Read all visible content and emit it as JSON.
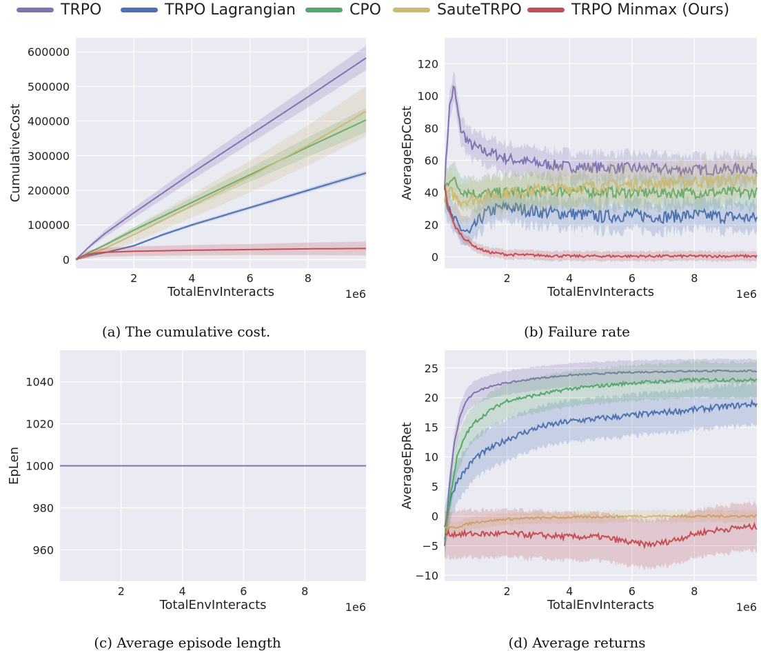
{
  "legend": [
    {
      "name": "TRPO",
      "color": "#8172b2"
    },
    {
      "name": "TRPO Lagrangian",
      "color": "#4c72b0"
    },
    {
      "name": "CPO",
      "color": "#55a868"
    },
    {
      "name": "SauteTRPO",
      "color": "#ccb974"
    },
    {
      "name": "TRPO Minmax (Ours)",
      "color": "#c44e52"
    }
  ],
  "captions": {
    "a": "(a) The cumulative cost.",
    "b": "(b) Failure rate",
    "c": "(c) Average episode length",
    "d": "(d) Average returns"
  },
  "chart_data": [
    {
      "id": "a",
      "type": "line",
      "xlabel": "TotalEnvInteracts",
      "ylabel": "CumulativeCost",
      "x_scale_label": "1e6",
      "xlim": [
        0,
        10
      ],
      "ylim": [
        -25000,
        640000
      ],
      "xticks": [
        2,
        4,
        6,
        8
      ],
      "yticks": [
        0,
        100000,
        200000,
        300000,
        400000,
        500000,
        600000
      ],
      "grid": true,
      "series": [
        {
          "name": "TRPO",
          "color": "#8172b2",
          "x": [
            0,
            0.5,
            1,
            2,
            4,
            6,
            8,
            10
          ],
          "y": [
            0,
            40000,
            75000,
            135000,
            250000,
            360000,
            470000,
            582000
          ],
          "band": [
            0,
            5000,
            10000,
            15000,
            20000,
            25000,
            30000,
            35000
          ]
        },
        {
          "name": "TRPO Lagrangian",
          "color": "#4c72b0",
          "x": [
            0,
            0.5,
            1,
            2,
            3,
            4,
            6,
            8,
            10
          ],
          "y": [
            0,
            12000,
            20000,
            40000,
            72000,
            100000,
            150000,
            200000,
            250000
          ],
          "band": [
            0,
            1000,
            2000,
            3000,
            4000,
            5000,
            5000,
            6000,
            6000
          ]
        },
        {
          "name": "CPO",
          "color": "#55a868",
          "x": [
            0,
            0.5,
            1,
            2,
            4,
            6,
            8,
            10
          ],
          "y": [
            0,
            22000,
            42000,
            85000,
            165000,
            245000,
            325000,
            403000
          ],
          "band": [
            0,
            2000,
            4000,
            8000,
            14000,
            20000,
            28000,
            35000
          ]
        },
        {
          "name": "SauteTRPO",
          "color": "#ccb974",
          "x": [
            0,
            0.5,
            1,
            2,
            4,
            6,
            8,
            10
          ],
          "y": [
            0,
            16000,
            32000,
            72000,
            155000,
            240000,
            330000,
            428000
          ],
          "band": [
            0,
            8000,
            14000,
            22000,
            34000,
            46000,
            58000,
            72000
          ]
        },
        {
          "name": "TRPO Minmax (Ours)",
          "color": "#c44e52",
          "x": [
            0,
            0.3,
            0.6,
            1,
            2,
            4,
            6,
            8,
            10
          ],
          "y": [
            0,
            12000,
            18000,
            21000,
            24000,
            27000,
            29000,
            31000,
            32000
          ],
          "band": [
            0,
            10000,
            12000,
            13000,
            14000,
            15000,
            16000,
            18000,
            20000
          ]
        }
      ]
    },
    {
      "id": "b",
      "type": "line",
      "xlabel": "TotalEnvInteracts",
      "ylabel": "AverageEpCost",
      "x_scale_label": "1e6",
      "xlim": [
        0,
        10
      ],
      "ylim": [
        -7,
        136
      ],
      "xticks": [
        2,
        4,
        6,
        8
      ],
      "yticks": [
        0,
        20,
        40,
        60,
        80,
        100,
        120
      ],
      "grid": true,
      "series": [
        {
          "name": "TRPO",
          "color": "#8172b2",
          "x": [
            0,
            0.15,
            0.3,
            0.5,
            0.8,
            1.2,
            1.6,
            2,
            3,
            4,
            6,
            8,
            10
          ],
          "y": [
            45,
            92,
            106,
            80,
            70,
            66,
            64,
            61,
            58,
            56,
            55,
            54,
            55
          ],
          "noise": 3.5,
          "band": 9
        },
        {
          "name": "TRPO Lagrangian",
          "color": "#4c72b0",
          "x": [
            0,
            0.2,
            0.5,
            0.8,
            1,
            1.3,
            1.7,
            2,
            3,
            4,
            5,
            6,
            7,
            8,
            9,
            10
          ],
          "y": [
            40,
            25,
            18,
            14,
            20,
            27,
            30,
            31,
            28,
            27,
            25,
            26,
            25,
            26,
            25,
            24
          ],
          "noise": 4,
          "band": 9
        },
        {
          "name": "CPO",
          "color": "#55a868",
          "x": [
            0,
            0.2,
            0.5,
            1,
            2,
            4,
            6,
            8,
            10
          ],
          "y": [
            42,
            50,
            42,
            39,
            40,
            41,
            40,
            40,
            40
          ],
          "noise": 3.5,
          "band": 10
        },
        {
          "name": "SauteTRPO",
          "color": "#ccb974",
          "x": [
            0,
            0.2,
            0.5,
            1,
            2,
            4,
            6,
            8,
            10
          ],
          "y": [
            38,
            40,
            35,
            36,
            40,
            43,
            45,
            47,
            48
          ],
          "noise": 4,
          "band": 12
        },
        {
          "name": "TRPO Minmax (Ours)",
          "color": "#c44e52",
          "x": [
            0,
            0.1,
            0.3,
            0.6,
            1,
            1.4,
            2,
            3,
            4,
            6,
            8,
            10
          ],
          "y": [
            45,
            32,
            20,
            12,
            6,
            3,
            1.5,
            1,
            0.5,
            0.5,
            0.5,
            0.5
          ],
          "noise": 0.8,
          "band": 3
        }
      ]
    },
    {
      "id": "c",
      "type": "line",
      "xlabel": "TotalEnvInteracts",
      "ylabel": "EpLen",
      "x_scale_label": "1e6",
      "xlim": [
        0,
        10
      ],
      "ylim": [
        945,
        1055
      ],
      "xticks": [
        2,
        4,
        6,
        8
      ],
      "yticks": [
        960,
        980,
        1000,
        1020,
        1040
      ],
      "grid": true,
      "series": [
        {
          "name": "TRPO",
          "color": "#8172b2",
          "x": [
            0,
            10
          ],
          "y": [
            1000,
            1000
          ]
        }
      ]
    },
    {
      "id": "d",
      "type": "line",
      "xlabel": "TotalEnvInteracts",
      "ylabel": "AverageEpRet",
      "x_scale_label": "1e6",
      "xlim": [
        0,
        10
      ],
      "ylim": [
        -11,
        28
      ],
      "xticks": [
        2,
        4,
        6,
        8
      ],
      "yticks": [
        -10,
        -5,
        0,
        5,
        10,
        15,
        20,
        25
      ],
      "grid": true,
      "series": [
        {
          "name": "TRPO",
          "color": "#8172b2",
          "x": [
            0,
            0.15,
            0.3,
            0.5,
            0.7,
            1,
            1.5,
            2,
            3,
            4,
            6,
            8,
            10
          ],
          "y": [
            -5,
            5,
            12,
            17,
            19.5,
            21,
            22,
            22.5,
            23.3,
            23.8,
            24.3,
            24.5,
            24.5
          ],
          "noise": 0.15,
          "band": 2
        },
        {
          "name": "TRPO Lagrangian",
          "color": "#4c72b0",
          "x": [
            0,
            0.2,
            0.4,
            0.7,
            1,
            1.5,
            2,
            3,
            4,
            5,
            6,
            7,
            8,
            9,
            10
          ],
          "y": [
            -2,
            3,
            6,
            8,
            10,
            11.5,
            13,
            15,
            16,
            16.5,
            17,
            17.5,
            18,
            18.5,
            19
          ],
          "noise": 0.5,
          "band": 3.5
        },
        {
          "name": "CPO",
          "color": "#55a868",
          "x": [
            0,
            0.2,
            0.4,
            0.7,
            1,
            1.5,
            2,
            3,
            4,
            5,
            6,
            8,
            10
          ],
          "y": [
            -4,
            4,
            10,
            14,
            16,
            18,
            19.5,
            20.5,
            21.5,
            22,
            22.5,
            23,
            23
          ],
          "noise": 0.3,
          "band": 3
        },
        {
          "name": "SauteTRPO",
          "color": "#ccb974",
          "x": [
            0,
            0.3,
            0.6,
            1,
            2,
            3,
            4,
            6,
            8,
            10
          ],
          "y": [
            -2,
            -2,
            -1.5,
            -1,
            -0.5,
            -0.3,
            -0.2,
            0,
            0,
            0
          ],
          "noise": 0.2,
          "band": 1
        },
        {
          "name": "TRPO Minmax (Ours)",
          "color": "#c44e52",
          "x": [
            0,
            0.3,
            1,
            2,
            3,
            4,
            5,
            6,
            6.5,
            7,
            7.5,
            8,
            8.5,
            9,
            9.5,
            10
          ],
          "y": [
            -3,
            -3,
            -3,
            -3,
            -3.2,
            -3.5,
            -3.5,
            -4.5,
            -4.8,
            -4.5,
            -3.8,
            -3,
            -2.5,
            -2.2,
            -1.9,
            -1.8
          ],
          "noise": 0.5,
          "band": 4
        }
      ]
    }
  ]
}
